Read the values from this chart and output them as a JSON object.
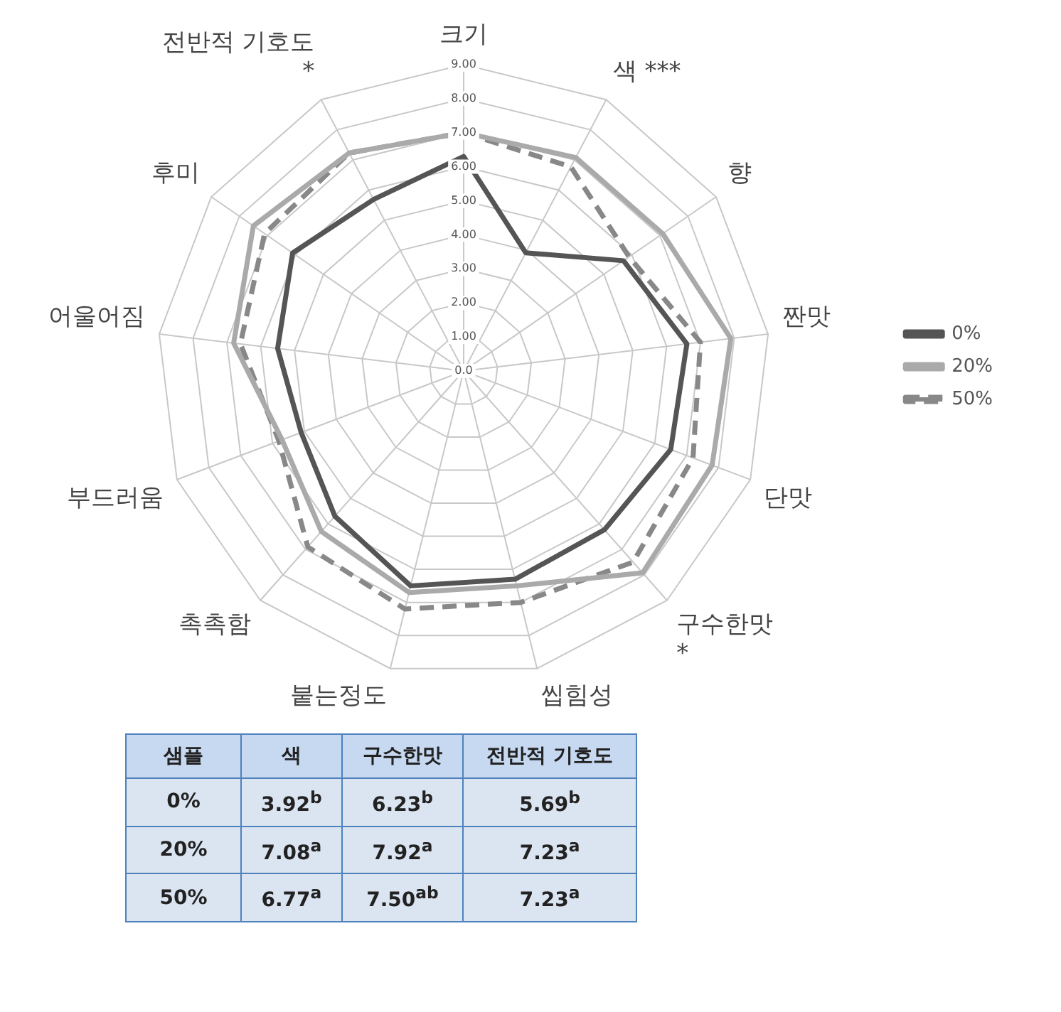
{
  "chart_data": {
    "type": "radar",
    "categories": [
      "크기",
      "색 ***",
      "향",
      "짠맛",
      "단맛",
      "구수한맛\n*",
      "씹힘성",
      "붙는정도",
      "촉촉함",
      "부드러움",
      "어울어짐",
      "후미",
      "전반적 기호도\n*"
    ],
    "series": [
      {
        "name": "0%",
        "color": "#555555",
        "line_style": "solid",
        "values": [
          6.3,
          3.92,
          5.7,
          6.6,
          6.5,
          6.23,
          6.3,
          6.5,
          5.7,
          5.1,
          5.5,
          6.1,
          5.69
        ]
      },
      {
        "name": "20%",
        "color": "#aaaaaa",
        "line_style": "solid",
        "values": [
          7.0,
          7.08,
          7.1,
          7.9,
          7.8,
          7.92,
          6.5,
          6.7,
          6.3,
          5.7,
          6.8,
          7.5,
          7.23
        ]
      },
      {
        "name": "50%",
        "color": "#888888",
        "line_style": "dashed",
        "values": [
          7.0,
          6.77,
          5.9,
          7.0,
          7.2,
          7.5,
          7.0,
          7.2,
          6.9,
          5.8,
          6.6,
          7.1,
          7.23
        ]
      }
    ],
    "ylim": [
      0,
      9
    ],
    "yticks": [
      {
        "value": 0,
        "label": "0.0"
      },
      {
        "value": 1,
        "label": "1.00"
      },
      {
        "value": 2,
        "label": "2.00"
      },
      {
        "value": 3,
        "label": "3.00"
      },
      {
        "value": 4,
        "label": "4.00"
      },
      {
        "value": 5,
        "label": "5.00"
      },
      {
        "value": 6,
        "label": "6.00"
      },
      {
        "value": 7,
        "label": "7.00"
      },
      {
        "value": 8,
        "label": "8.00"
      },
      {
        "value": 9,
        "label": "9.00"
      }
    ],
    "grid": true,
    "legend": "right",
    "marker": "none",
    "annotations": [
      "샘플",
      "색",
      "구수한맛",
      "전반적 기호도",
      "3.92$^{b}$",
      "6.23$^{b}$",
      "5.69$^{b}$",
      "7.08$^{a}$",
      "7.92$^{a}$",
      "7.23$^{a}$",
      "6.77$^{a}$",
      "7.50$^{ab}$",
      "7.23$^{a}$"
    ]
  }
}
